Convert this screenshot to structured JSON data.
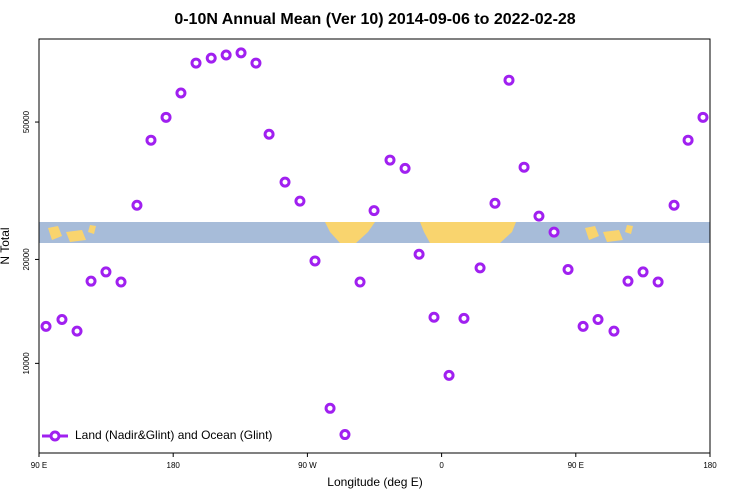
{
  "chart_data": {
    "type": "scatter",
    "title": "0-10N Annual Mean (Ver 10)   2014-09-06 to 2022-02-28",
    "xlabel": "Longitude (deg E)",
    "ylabel": "N Total",
    "series": [
      {
        "name": "Land (Nadir&Glint) and Ocean (Glint)",
        "color": "#a020f0",
        "x": [
          94.7,
          105.4,
          115.5,
          124.9,
          134.9,
          145,
          155.7,
          165.1,
          175.2,
          185.2,
          195.3,
          205.5,
          215.5,
          225.5,
          235.5,
          244.3,
          255,
          265,
          275.1,
          285.2,
          295.2,
          305.3,
          314.7,
          325.4,
          335.5,
          344.9,
          354.9,
          365,
          375,
          385.8,
          395.8,
          405.2,
          415.3,
          425.3,
          435.4,
          444.8,
          454.9,
          464.9,
          475.6,
          485,
          495.1,
          505.2,
          515.9,
          525.3,
          535.3
        ],
        "values": [
          12800,
          13400,
          12400,
          17300,
          18400,
          17200,
          28700,
          44300,
          51600,
          60700,
          74100,
          76600,
          78200,
          79300,
          74100,
          46100,
          33500,
          29500,
          19800,
          7410,
          6220,
          17200,
          27700,
          38800,
          36700,
          20700,
          13600,
          9230,
          13500,
          18900,
          29100,
          66100,
          37000,
          26700,
          24000,
          18700,
          12800,
          13400,
          12400,
          17300,
          18400,
          17200,
          28700,
          44300,
          51600
        ]
      }
    ],
    "xlim": [
      90,
      540
    ],
    "xticks": [
      {
        "value": 90,
        "label": "90 E"
      },
      {
        "value": 180,
        "label": "180"
      },
      {
        "value": 270,
        "label": "90 W"
      },
      {
        "value": 360,
        "label": "0"
      },
      {
        "value": 450,
        "label": "90 E"
      },
      {
        "value": 540,
        "label": "180"
      }
    ],
    "ylim": [
      5500,
      87000
    ],
    "yticks": [
      10000,
      20000,
      50000
    ],
    "log_y": true,
    "legend": "lower left"
  }
}
